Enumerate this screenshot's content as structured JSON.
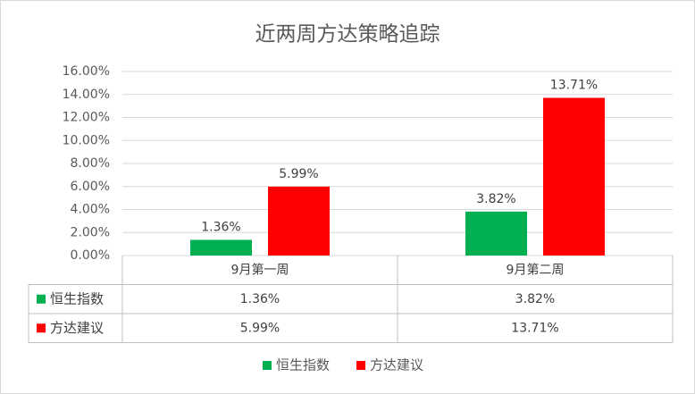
{
  "chart_data": {
    "type": "bar",
    "title": "近两周方达策略追踪",
    "categories": [
      "9月第一周",
      "9月第二周"
    ],
    "series": [
      {
        "name": "恒生指数",
        "color": "#00b050",
        "values": [
          1.36,
          3.82
        ],
        "value_labels": [
          "1.36%",
          "3.82%"
        ]
      },
      {
        "name": "方达建议",
        "color": "#ff0000",
        "values": [
          5.99,
          13.71
        ],
        "value_labels": [
          "5.99%",
          "13.71%"
        ]
      }
    ],
    "ylim": [
      0,
      16
    ],
    "yticks": [
      {
        "value": 0,
        "label": "0.00%"
      },
      {
        "value": 2,
        "label": "2.00%"
      },
      {
        "value": 4,
        "label": "4.00%"
      },
      {
        "value": 6,
        "label": "6.00%"
      },
      {
        "value": 8,
        "label": "8.00%"
      },
      {
        "value": 10,
        "label": "10.00%"
      },
      {
        "value": 12,
        "label": "12.00%"
      },
      {
        "value": 14,
        "label": "14.00%"
      },
      {
        "value": 16,
        "label": "16.00%"
      }
    ],
    "grid": true,
    "legend": "bottom"
  }
}
